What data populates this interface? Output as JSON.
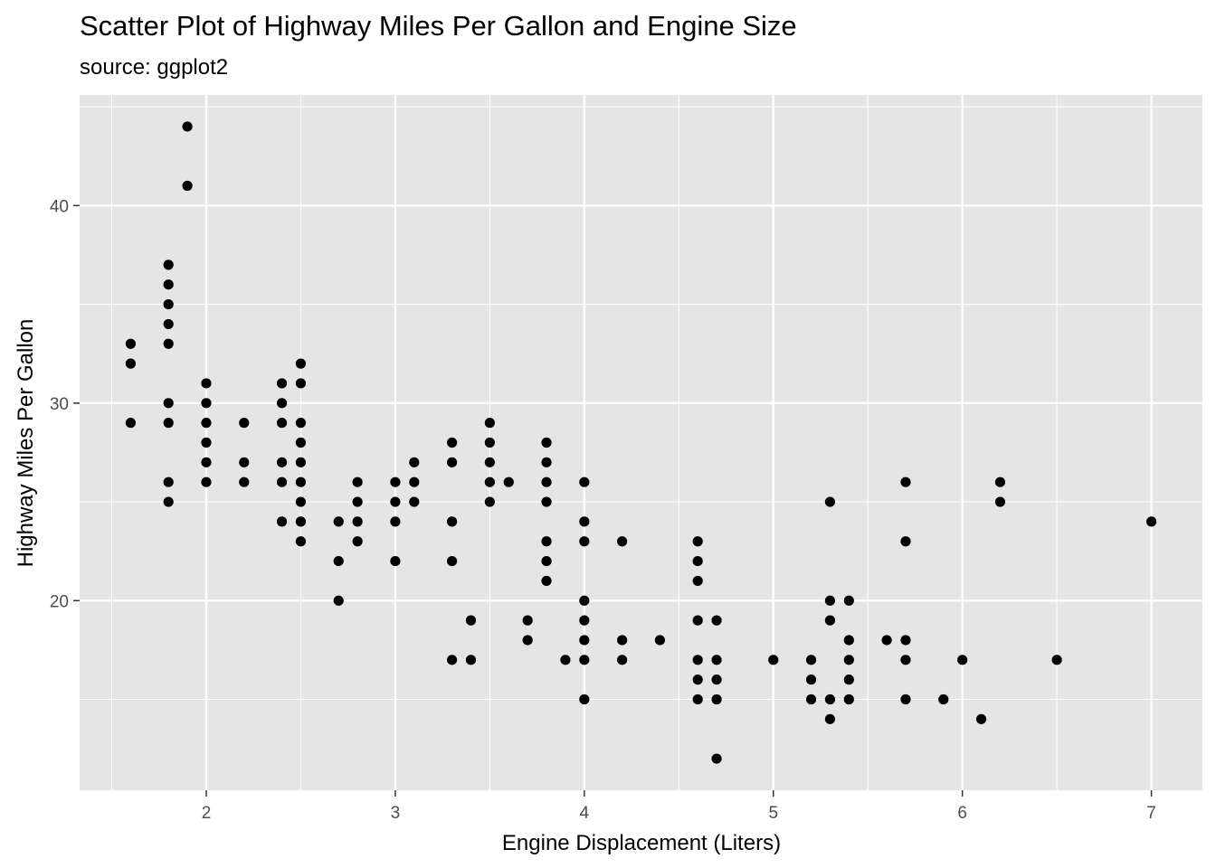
{
  "chart_data": {
    "type": "scatter",
    "title": "Scatter Plot of Highway Miles Per Gallon and Engine Size",
    "subtitle": "source: ggplot2",
    "xlabel": "Engine Displacement (Liters)",
    "ylabel": "Highway Miles Per Gallon",
    "xlim": [
      1.33,
      7.27
    ],
    "ylim": [
      10.4,
      45.6
    ],
    "x_ticks": [
      2,
      3,
      4,
      5,
      6,
      7
    ],
    "y_ticks": [
      20,
      30,
      40
    ],
    "x_tick_labels": [
      "2",
      "3",
      "4",
      "5",
      "6",
      "7"
    ],
    "y_tick_labels": [
      "20",
      "30",
      "40"
    ],
    "x_minor_ticks": [
      1.5,
      2.5,
      3.5,
      4.5,
      5.5,
      6.5
    ],
    "y_minor_ticks": [
      15,
      25,
      35,
      45
    ],
    "grid": true,
    "colors": {
      "panel": "#e5e5e5",
      "grid": "#ffffff",
      "point": "#000000",
      "tick": "#333333"
    },
    "points": [
      {
        "x": 1.6,
        "y": 33
      },
      {
        "x": 1.6,
        "y": 32
      },
      {
        "x": 1.6,
        "y": 29
      },
      {
        "x": 1.8,
        "y": 37
      },
      {
        "x": 1.8,
        "y": 36
      },
      {
        "x": 1.8,
        "y": 35
      },
      {
        "x": 1.8,
        "y": 34
      },
      {
        "x": 1.8,
        "y": 33
      },
      {
        "x": 1.8,
        "y": 30
      },
      {
        "x": 1.8,
        "y": 29
      },
      {
        "x": 1.8,
        "y": 26
      },
      {
        "x": 1.8,
        "y": 25
      },
      {
        "x": 1.9,
        "y": 44
      },
      {
        "x": 1.9,
        "y": 41
      },
      {
        "x": 2.0,
        "y": 31
      },
      {
        "x": 2.0,
        "y": 30
      },
      {
        "x": 2.0,
        "y": 29
      },
      {
        "x": 2.0,
        "y": 28
      },
      {
        "x": 2.0,
        "y": 27
      },
      {
        "x": 2.0,
        "y": 26
      },
      {
        "x": 2.2,
        "y": 29
      },
      {
        "x": 2.2,
        "y": 27
      },
      {
        "x": 2.2,
        "y": 26
      },
      {
        "x": 2.4,
        "y": 31
      },
      {
        "x": 2.4,
        "y": 30
      },
      {
        "x": 2.4,
        "y": 29
      },
      {
        "x": 2.4,
        "y": 27
      },
      {
        "x": 2.4,
        "y": 26
      },
      {
        "x": 2.4,
        "y": 24
      },
      {
        "x": 2.5,
        "y": 32
      },
      {
        "x": 2.5,
        "y": 31
      },
      {
        "x": 2.5,
        "y": 29
      },
      {
        "x": 2.5,
        "y": 28
      },
      {
        "x": 2.5,
        "y": 27
      },
      {
        "x": 2.5,
        "y": 26
      },
      {
        "x": 2.5,
        "y": 25
      },
      {
        "x": 2.5,
        "y": 24
      },
      {
        "x": 2.5,
        "y": 23
      },
      {
        "x": 2.7,
        "y": 24
      },
      {
        "x": 2.7,
        "y": 22
      },
      {
        "x": 2.7,
        "y": 20
      },
      {
        "x": 2.8,
        "y": 26
      },
      {
        "x": 2.8,
        "y": 25
      },
      {
        "x": 2.8,
        "y": 24
      },
      {
        "x": 2.8,
        "y": 23
      },
      {
        "x": 3.0,
        "y": 26
      },
      {
        "x": 3.0,
        "y": 25
      },
      {
        "x": 3.0,
        "y": 24
      },
      {
        "x": 3.0,
        "y": 22
      },
      {
        "x": 3.1,
        "y": 27
      },
      {
        "x": 3.1,
        "y": 26
      },
      {
        "x": 3.1,
        "y": 25
      },
      {
        "x": 3.3,
        "y": 28
      },
      {
        "x": 3.3,
        "y": 27
      },
      {
        "x": 3.3,
        "y": 24
      },
      {
        "x": 3.3,
        "y": 22
      },
      {
        "x": 3.3,
        "y": 17
      },
      {
        "x": 3.4,
        "y": 19
      },
      {
        "x": 3.4,
        "y": 17
      },
      {
        "x": 3.5,
        "y": 29
      },
      {
        "x": 3.5,
        "y": 28
      },
      {
        "x": 3.5,
        "y": 27
      },
      {
        "x": 3.5,
        "y": 26
      },
      {
        "x": 3.5,
        "y": 25
      },
      {
        "x": 3.6,
        "y": 26
      },
      {
        "x": 3.7,
        "y": 19
      },
      {
        "x": 3.7,
        "y": 18
      },
      {
        "x": 3.8,
        "y": 28
      },
      {
        "x": 3.8,
        "y": 27
      },
      {
        "x": 3.8,
        "y": 26
      },
      {
        "x": 3.8,
        "y": 25
      },
      {
        "x": 3.8,
        "y": 23
      },
      {
        "x": 3.8,
        "y": 22
      },
      {
        "x": 3.8,
        "y": 21
      },
      {
        "x": 3.9,
        "y": 17
      },
      {
        "x": 4.0,
        "y": 26
      },
      {
        "x": 4.0,
        "y": 24
      },
      {
        "x": 4.0,
        "y": 23
      },
      {
        "x": 4.0,
        "y": 20
      },
      {
        "x": 4.0,
        "y": 19
      },
      {
        "x": 4.0,
        "y": 18
      },
      {
        "x": 4.0,
        "y": 17
      },
      {
        "x": 4.0,
        "y": 15
      },
      {
        "x": 4.2,
        "y": 23
      },
      {
        "x": 4.2,
        "y": 18
      },
      {
        "x": 4.2,
        "y": 17
      },
      {
        "x": 4.4,
        "y": 18
      },
      {
        "x": 4.6,
        "y": 23
      },
      {
        "x": 4.6,
        "y": 22
      },
      {
        "x": 4.6,
        "y": 21
      },
      {
        "x": 4.6,
        "y": 19
      },
      {
        "x": 4.6,
        "y": 17
      },
      {
        "x": 4.6,
        "y": 16
      },
      {
        "x": 4.6,
        "y": 15
      },
      {
        "x": 4.7,
        "y": 19
      },
      {
        "x": 4.7,
        "y": 17
      },
      {
        "x": 4.7,
        "y": 16
      },
      {
        "x": 4.7,
        "y": 15
      },
      {
        "x": 4.7,
        "y": 12
      },
      {
        "x": 5.0,
        "y": 17
      },
      {
        "x": 5.2,
        "y": 17
      },
      {
        "x": 5.2,
        "y": 16
      },
      {
        "x": 5.2,
        "y": 15
      },
      {
        "x": 5.3,
        "y": 25
      },
      {
        "x": 5.3,
        "y": 20
      },
      {
        "x": 5.3,
        "y": 19
      },
      {
        "x": 5.3,
        "y": 15
      },
      {
        "x": 5.3,
        "y": 14
      },
      {
        "x": 5.4,
        "y": 20
      },
      {
        "x": 5.4,
        "y": 18
      },
      {
        "x": 5.4,
        "y": 17
      },
      {
        "x": 5.4,
        "y": 16
      },
      {
        "x": 5.4,
        "y": 15
      },
      {
        "x": 5.6,
        "y": 18
      },
      {
        "x": 5.7,
        "y": 26
      },
      {
        "x": 5.7,
        "y": 23
      },
      {
        "x": 5.7,
        "y": 18
      },
      {
        "x": 5.7,
        "y": 17
      },
      {
        "x": 5.7,
        "y": 15
      },
      {
        "x": 5.9,
        "y": 15
      },
      {
        "x": 6.0,
        "y": 17
      },
      {
        "x": 6.1,
        "y": 14
      },
      {
        "x": 6.2,
        "y": 26
      },
      {
        "x": 6.2,
        "y": 25
      },
      {
        "x": 6.5,
        "y": 17
      },
      {
        "x": 7.0,
        "y": 24
      }
    ]
  }
}
